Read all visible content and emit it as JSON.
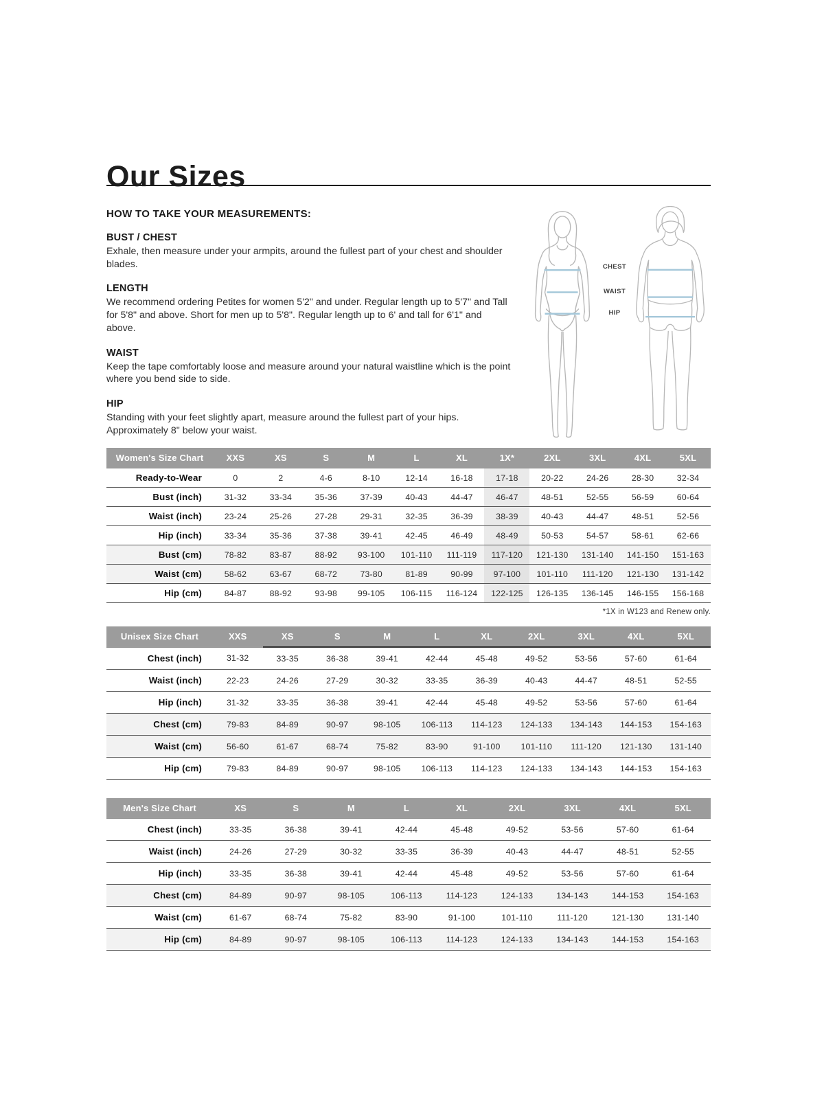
{
  "page": {
    "title": "Our Sizes"
  },
  "instructions": {
    "heading": "HOW TO TAKE YOUR MEASUREMENTS:",
    "sections": [
      {
        "title": "BUST / CHEST",
        "body": "Exhale, then measure under your armpits, around the fullest part of your chest and shoulder blades."
      },
      {
        "title": "LENGTH",
        "body": "We recommend ordering Petites for women 5'2\" and under. Regular length up to 5'7\" and Tall for 5'8\" and above. Short for men up to 5'8\". Regular length up to 6' and tall for 6'1\" and above."
      },
      {
        "title": "WAIST",
        "body": "Keep the tape comfortably loose and measure around your natural waistline which is the point where you bend side to side."
      },
      {
        "title": "HIP",
        "body": "Standing with your feet slightly apart, measure around the fullest part of your hips. Approximately 8\" below your waist."
      }
    ]
  },
  "figure": {
    "labels": [
      "CHEST",
      "WAIST",
      "HIP"
    ]
  },
  "colors": {
    "header_bg": "#9c9c9c",
    "stripe": "#f2f2f2",
    "highlight_column": "#eaeaea",
    "measure_line": "#a5c8da"
  },
  "tables": [
    {
      "id": "womens",
      "title": "Women's Size Chart",
      "columns": [
        "XXS",
        "XS",
        "S",
        "M",
        "L",
        "XL",
        "1X*",
        "2XL",
        "3XL",
        "4XL",
        "5XL"
      ],
      "highlight_col": 6,
      "header_rule_from": null,
      "tall": false,
      "footnote": "*1X in W123 and Renew only.",
      "rows": [
        {
          "label": "Ready-to-Wear",
          "shaded": false,
          "values": [
            "0",
            "2",
            "4-6",
            "8-10",
            "12-14",
            "16-18",
            "17-18",
            "20-22",
            "24-26",
            "28-30",
            "32-34"
          ]
        },
        {
          "label": "Bust (inch)",
          "shaded": false,
          "values": [
            "31-32",
            "33-34",
            "35-36",
            "37-39",
            "40-43",
            "44-47",
            "46-47",
            "48-51",
            "52-55",
            "56-59",
            "60-64"
          ]
        },
        {
          "label": "Waist (inch)",
          "shaded": false,
          "values": [
            "23-24",
            "25-26",
            "27-28",
            "29-31",
            "32-35",
            "36-39",
            "38-39",
            "40-43",
            "44-47",
            "48-51",
            "52-56"
          ]
        },
        {
          "label": "Hip (inch)",
          "shaded": false,
          "values": [
            "33-34",
            "35-36",
            "37-38",
            "39-41",
            "42-45",
            "46-49",
            "48-49",
            "50-53",
            "54-57",
            "58-61",
            "62-66"
          ]
        },
        {
          "label": "Bust (cm)",
          "shaded": true,
          "values": [
            "78-82",
            "83-87",
            "88-92",
            "93-100",
            "101-110",
            "111-119",
            "117-120",
            "121-130",
            "131-140",
            "141-150",
            "151-163"
          ]
        },
        {
          "label": "Waist (cm)",
          "shaded": true,
          "values": [
            "58-62",
            "63-67",
            "68-72",
            "73-80",
            "81-89",
            "90-99",
            "97-100",
            "101-110",
            "111-120",
            "121-130",
            "131-142"
          ]
        },
        {
          "label": "Hip (cm)",
          "shaded": false,
          "values": [
            "84-87",
            "88-92",
            "93-98",
            "99-105",
            "106-115",
            "116-124",
            "122-125",
            "126-135",
            "136-145",
            "146-155",
            "156-168"
          ]
        }
      ]
    },
    {
      "id": "unisex",
      "title": "Unisex Size Chart",
      "columns": [
        "XXS",
        "XS",
        "S",
        "M",
        "L",
        "XL",
        "2XL",
        "3XL",
        "4XL",
        "5XL"
      ],
      "highlight_col": null,
      "header_rule_from": 1,
      "tall": true,
      "footnote": null,
      "rows": [
        {
          "label": "Chest (inch)",
          "shaded": false,
          "values": [
            "31-32",
            "33-35",
            "36-38",
            "39-41",
            "42-44",
            "45-48",
            "49-52",
            "53-56",
            "57-60",
            "61-64"
          ]
        },
        {
          "label": "Waist (inch)",
          "shaded": false,
          "values": [
            "22-23",
            "24-26",
            "27-29",
            "30-32",
            "33-35",
            "36-39",
            "40-43",
            "44-47",
            "48-51",
            "52-55"
          ]
        },
        {
          "label": "Hip (inch)",
          "shaded": false,
          "values": [
            "31-32",
            "33-35",
            "36-38",
            "39-41",
            "42-44",
            "45-48",
            "49-52",
            "53-56",
            "57-60",
            "61-64"
          ]
        },
        {
          "label": "Chest (cm)",
          "shaded": true,
          "values": [
            "79-83",
            "84-89",
            "90-97",
            "98-105",
            "106-113",
            "114-123",
            "124-133",
            "134-143",
            "144-153",
            "154-163"
          ]
        },
        {
          "label": "Waist (cm)",
          "shaded": true,
          "values": [
            "56-60",
            "61-67",
            "68-74",
            "75-82",
            "83-90",
            "91-100",
            "101-110",
            "111-120",
            "121-130",
            "131-140"
          ]
        },
        {
          "label": "Hip (cm)",
          "shaded": false,
          "values": [
            "79-83",
            "84-89",
            "90-97",
            "98-105",
            "106-113",
            "114-123",
            "124-133",
            "134-143",
            "144-153",
            "154-163"
          ]
        }
      ]
    },
    {
      "id": "mens",
      "title": "Men's Size Chart",
      "columns": [
        "XS",
        "S",
        "M",
        "L",
        "XL",
        "2XL",
        "3XL",
        "4XL",
        "5XL"
      ],
      "highlight_col": null,
      "header_rule_from": null,
      "tall": true,
      "footnote": null,
      "rows": [
        {
          "label": "Chest (inch)",
          "shaded": false,
          "values": [
            "33-35",
            "36-38",
            "39-41",
            "42-44",
            "45-48",
            "49-52",
            "53-56",
            "57-60",
            "61-64"
          ]
        },
        {
          "label": "Waist (inch)",
          "shaded": false,
          "values": [
            "24-26",
            "27-29",
            "30-32",
            "33-35",
            "36-39",
            "40-43",
            "44-47",
            "48-51",
            "52-55"
          ]
        },
        {
          "label": "Hip (inch)",
          "shaded": false,
          "values": [
            "33-35",
            "36-38",
            "39-41",
            "42-44",
            "45-48",
            "49-52",
            "53-56",
            "57-60",
            "61-64"
          ]
        },
        {
          "label": "Chest (cm)",
          "shaded": true,
          "values": [
            "84-89",
            "90-97",
            "98-105",
            "106-113",
            "114-123",
            "124-133",
            "134-143",
            "144-153",
            "154-163"
          ]
        },
        {
          "label": "Waist (cm)",
          "shaded": false,
          "values": [
            "61-67",
            "68-74",
            "75-82",
            "83-90",
            "91-100",
            "101-110",
            "111-120",
            "121-130",
            "131-140"
          ]
        },
        {
          "label": "Hip (cm)",
          "shaded": true,
          "values": [
            "84-89",
            "90-97",
            "98-105",
            "106-113",
            "114-123",
            "124-133",
            "134-143",
            "144-153",
            "154-163"
          ]
        }
      ]
    }
  ]
}
